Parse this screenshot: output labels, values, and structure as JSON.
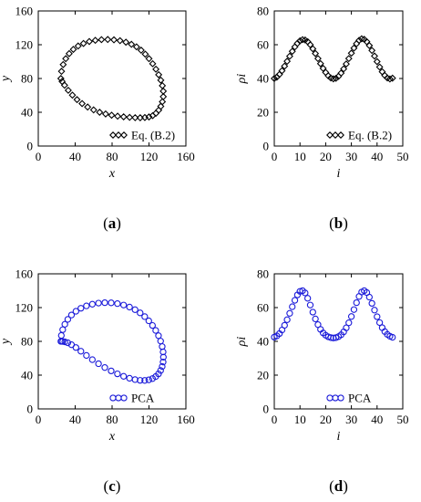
{
  "chart_data": [
    {
      "id": "a",
      "type": "scatter",
      "panel_label": "a",
      "xlabel": "x",
      "ylabel": "y",
      "xlim": [
        0,
        160
      ],
      "ylim": [
        0,
        160
      ],
      "xticks": [
        "0",
        "40",
        "80",
        "120",
        "160"
      ],
      "yticks": [
        "0",
        "40",
        "80",
        "120",
        "160"
      ],
      "marker": "diamond",
      "color": "#000000",
      "legend": {
        "label": "Eq. (B.2)",
        "position": "bottom-right"
      },
      "series": [
        {
          "name": "Eq. (B.2)",
          "x": [
            24.5,
            25.2,
            27.0,
            29.8,
            33.5,
            38.0,
            43.2,
            49.0,
            55.3,
            61.8,
            68.5,
            75.3,
            82.0,
            88.6,
            95.0,
            101.0,
            106.5,
            111.5,
            116.0,
            120.0,
            124.0,
            127.5,
            130.5,
            132.8,
            134.5,
            135.5,
            135.5,
            134.5,
            132.8,
            130.5,
            127.5,
            124.0,
            120.0,
            115.5,
            110.5,
            105.0,
            99.0,
            92.5,
            86.0,
            79.5,
            73.0,
            66.5,
            60.0,
            53.5,
            47.5,
            42.0,
            37.0,
            32.5,
            28.5,
            25.8
          ],
          "y": [
            80.0,
            88.5,
            96.5,
            103.5,
            109.5,
            114.5,
            118.5,
            121.5,
            123.8,
            125.2,
            126.0,
            126.2,
            125.8,
            124.8,
            123.0,
            120.5,
            117.5,
            113.5,
            108.8,
            103.5,
            97.5,
            91.0,
            84.5,
            78.0,
            71.5,
            65.0,
            58.5,
            52.5,
            47.0,
            42.5,
            38.8,
            36.0,
            34.5,
            33.8,
            33.5,
            33.6,
            34.0,
            34.6,
            35.4,
            36.5,
            38.0,
            40.0,
            42.8,
            46.2,
            50.3,
            55.0,
            60.3,
            66.0,
            72.0,
            76.5
          ]
        }
      ]
    },
    {
      "id": "b",
      "type": "line",
      "panel_label": "b",
      "xlabel": "i",
      "ylabel": "ρi",
      "xlim": [
        0,
        50
      ],
      "ylim": [
        0,
        80
      ],
      "xticks": [
        "0",
        "10",
        "20",
        "30",
        "40",
        "50"
      ],
      "yticks": [
        "0",
        "20",
        "40",
        "60",
        "80"
      ],
      "marker": "diamond",
      "color": "#000000",
      "legend": {
        "label": "Eq. (B.2)",
        "position": "bottom-right"
      },
      "series": [
        {
          "name": "Eq. (B.2)",
          "x": [
            0,
            1,
            2,
            3,
            4,
            5,
            6,
            7,
            8,
            9,
            10,
            11,
            12,
            13,
            14,
            15,
            16,
            17,
            18,
            19,
            20,
            21,
            22,
            23,
            24,
            25,
            26,
            27,
            28,
            29,
            30,
            31,
            32,
            33,
            34,
            35,
            36,
            37,
            38,
            39,
            40,
            41,
            42,
            43,
            44,
            45,
            46
          ],
          "y": [
            40.0,
            40.8,
            42.4,
            44.6,
            47.3,
            50.2,
            53.2,
            56.1,
            58.7,
            60.8,
            62.3,
            63.0,
            62.8,
            61.8,
            60.0,
            57.6,
            54.8,
            51.8,
            48.8,
            46.0,
            43.6,
            41.6,
            40.3,
            39.8,
            40.1,
            41.3,
            43.2,
            45.7,
            48.6,
            51.8,
            55.0,
            58.0,
            60.6,
            62.6,
            63.5,
            63.2,
            61.8,
            59.5,
            56.6,
            53.3,
            50.0,
            46.8,
            44.0,
            41.8,
            40.3,
            39.7,
            40.2
          ]
        }
      ]
    },
    {
      "id": "c",
      "type": "scatter",
      "panel_label": "c",
      "xlabel": "x",
      "ylabel": "y",
      "xlim": [
        0,
        160
      ],
      "ylim": [
        0,
        160
      ],
      "xticks": [
        "0",
        "40",
        "80",
        "120",
        "160"
      ],
      "yticks": [
        "0",
        "40",
        "80",
        "120",
        "160"
      ],
      "marker": "circle",
      "color": "#1a1ad9",
      "legend": {
        "label": "PCA",
        "position": "bottom-right"
      },
      "series": [
        {
          "name": "PCA",
          "x": [
            24.5,
            25.0,
            26.5,
            28.8,
            32.0,
            36.0,
            40.8,
            46.2,
            52.2,
            58.6,
            65.3,
            72.1,
            79.0,
            85.8,
            92.5,
            98.9,
            104.9,
            110.4,
            115.4,
            119.8,
            123.8,
            127.3,
            130.3,
            132.6,
            134.3,
            135.3,
            135.6,
            135.3,
            134.3,
            132.6,
            130.3,
            127.3,
            123.8,
            119.8,
            115.4,
            110.4,
            104.9,
            98.9,
            92.5,
            85.8,
            79.0,
            72.1,
            65.3,
            58.6,
            52.2,
            46.2,
            40.8,
            36.0,
            32.0,
            28.8,
            26.5,
            25.0
          ],
          "y": [
            80.0,
            87.0,
            93.8,
            100.2,
            106.0,
            111.2,
            115.6,
            119.2,
            122.0,
            124.0,
            125.3,
            125.8,
            125.6,
            124.7,
            123.0,
            120.6,
            117.5,
            113.7,
            109.3,
            104.3,
            98.8,
            92.9,
            86.7,
            80.3,
            73.8,
            67.5,
            61.3,
            55.5,
            50.2,
            45.5,
            41.5,
            38.3,
            35.9,
            34.4,
            33.7,
            33.8,
            34.7,
            36.3,
            38.6,
            41.5,
            45.0,
            49.0,
            53.5,
            58.3,
            63.3,
            68.3,
            72.7,
            76.0,
            78.3,
            79.4,
            79.9,
            80.0
          ]
        }
      ]
    },
    {
      "id": "d",
      "type": "line",
      "panel_label": "d",
      "xlabel": "i",
      "ylabel": "ρi",
      "xlim": [
        0,
        50
      ],
      "ylim": [
        0,
        80
      ],
      "xticks": [
        "0",
        "10",
        "20",
        "30",
        "40",
        "50"
      ],
      "yticks": [
        "0",
        "20",
        "40",
        "60",
        "80"
      ],
      "marker": "circle",
      "color": "#1a1ad9",
      "legend": {
        "label": "PCA",
        "position": "bottom-right"
      },
      "series": [
        {
          "name": "PCA",
          "x": [
            0,
            1,
            2,
            3,
            4,
            5,
            6,
            7,
            8,
            9,
            10,
            11,
            12,
            13,
            14,
            15,
            16,
            17,
            18,
            19,
            20,
            21,
            22,
            23,
            24,
            25,
            26,
            27,
            28,
            29,
            30,
            31,
            32,
            33,
            34,
            35,
            36,
            37,
            38,
            39,
            40,
            41,
            42,
            43,
            44,
            45,
            46
          ],
          "y": [
            42.5,
            43.2,
            44.6,
            46.7,
            49.5,
            52.8,
            56.6,
            60.5,
            64.3,
            67.5,
            69.6,
            70.0,
            68.7,
            65.5,
            61.5,
            57.3,
            53.3,
            49.9,
            47.1,
            45.0,
            43.6,
            42.7,
            42.2,
            42.0,
            42.2,
            42.8,
            43.9,
            45.6,
            48.0,
            51.0,
            54.7,
            58.8,
            62.9,
            66.6,
            69.2,
            70.0,
            68.9,
            66.2,
            62.5,
            58.5,
            54.6,
            51.1,
            48.1,
            45.8,
            44.1,
            43.0,
            42.4
          ]
        }
      ]
    }
  ]
}
